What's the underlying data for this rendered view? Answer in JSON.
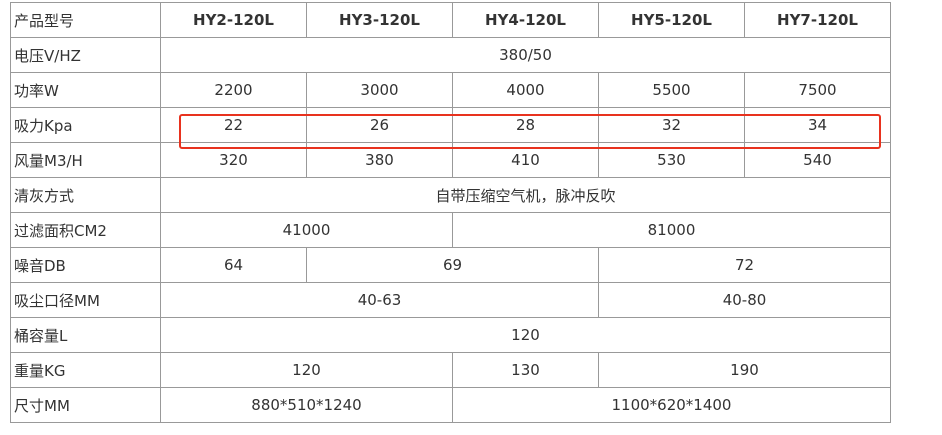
{
  "table": {
    "header": {
      "label": "产品型号",
      "models": [
        "HY2-120L",
        "HY3-120L",
        "HY4-120L",
        "HY5-120L",
        "HY7-120L"
      ]
    },
    "rows": {
      "voltage": {
        "label": "电压V/HZ",
        "value": "380/50"
      },
      "power": {
        "label": "功率W",
        "values": [
          "2200",
          "3000",
          "4000",
          "5500",
          "7500"
        ]
      },
      "suction": {
        "label": "吸力Kpa",
        "values": [
          "22",
          "26",
          "28",
          "32",
          "34"
        ]
      },
      "airflow": {
        "label": "风量M3/H",
        "values": [
          "320",
          "380",
          "410",
          "530",
          "540"
        ]
      },
      "cleaning": {
        "label": "清灰方式",
        "value": "自带压缩空气机，脉冲反吹"
      },
      "filter_area": {
        "label": "过滤面积CM2",
        "values": [
          "41000",
          "81000"
        ]
      },
      "noise": {
        "label": "噪音DB",
        "values": [
          "64",
          "69",
          "72"
        ]
      },
      "inlet": {
        "label": "吸尘口径MM",
        "values": [
          "40-63",
          "40-80"
        ]
      },
      "bucket": {
        "label": "桶容量L",
        "value": "120"
      },
      "weight": {
        "label": "重量KG",
        "values": [
          "120",
          "130",
          "190"
        ]
      },
      "size": {
        "label": "尺寸MM",
        "values": [
          "880*510*1240",
          "1100*620*1400"
        ]
      }
    }
  },
  "highlight": {
    "color": "#e8321e",
    "row": "suction"
  }
}
